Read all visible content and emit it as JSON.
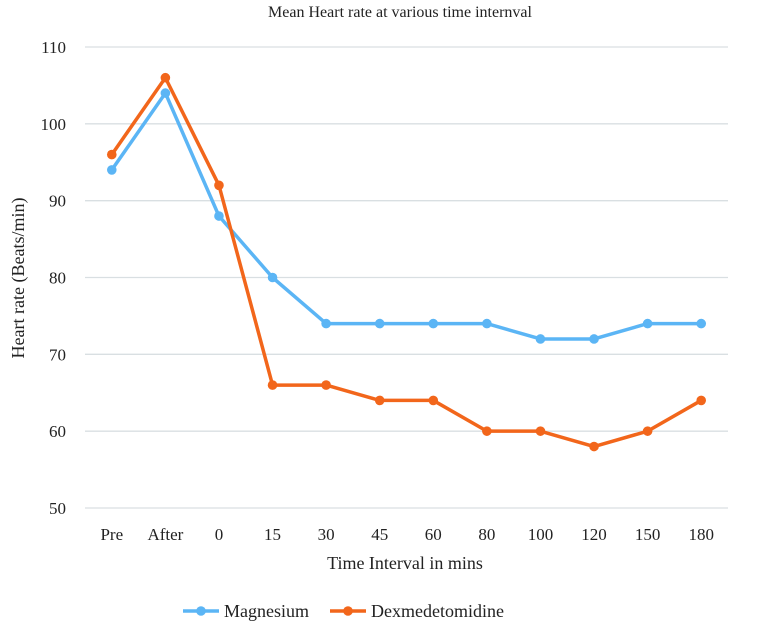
{
  "chart_data": {
    "type": "line",
    "title": "Mean Heart rate at various time internval",
    "xlabel": "Time Interval in mins",
    "ylabel": "Heart rate (Beats/min)",
    "categories": [
      "Pre",
      "After",
      "0",
      "15",
      "30",
      "45",
      "60",
      "80",
      "100",
      "120",
      "150",
      "180"
    ],
    "ylim": [
      50,
      110
    ],
    "yticks": [
      "50",
      "60",
      "70",
      "80",
      "90",
      "100",
      "110"
    ],
    "grid": true,
    "legend": "bottom",
    "series": [
      {
        "name": "Magnesium",
        "color": "#5BB5F5",
        "values": [
          94,
          104,
          88,
          80,
          74,
          74,
          74,
          74,
          72,
          72,
          74,
          74
        ]
      },
      {
        "name": "Dexmedetomidine",
        "color": "#F2661B",
        "values": [
          96,
          106,
          92,
          66,
          66,
          64,
          64,
          60,
          60,
          58,
          60,
          64
        ]
      }
    ]
  }
}
